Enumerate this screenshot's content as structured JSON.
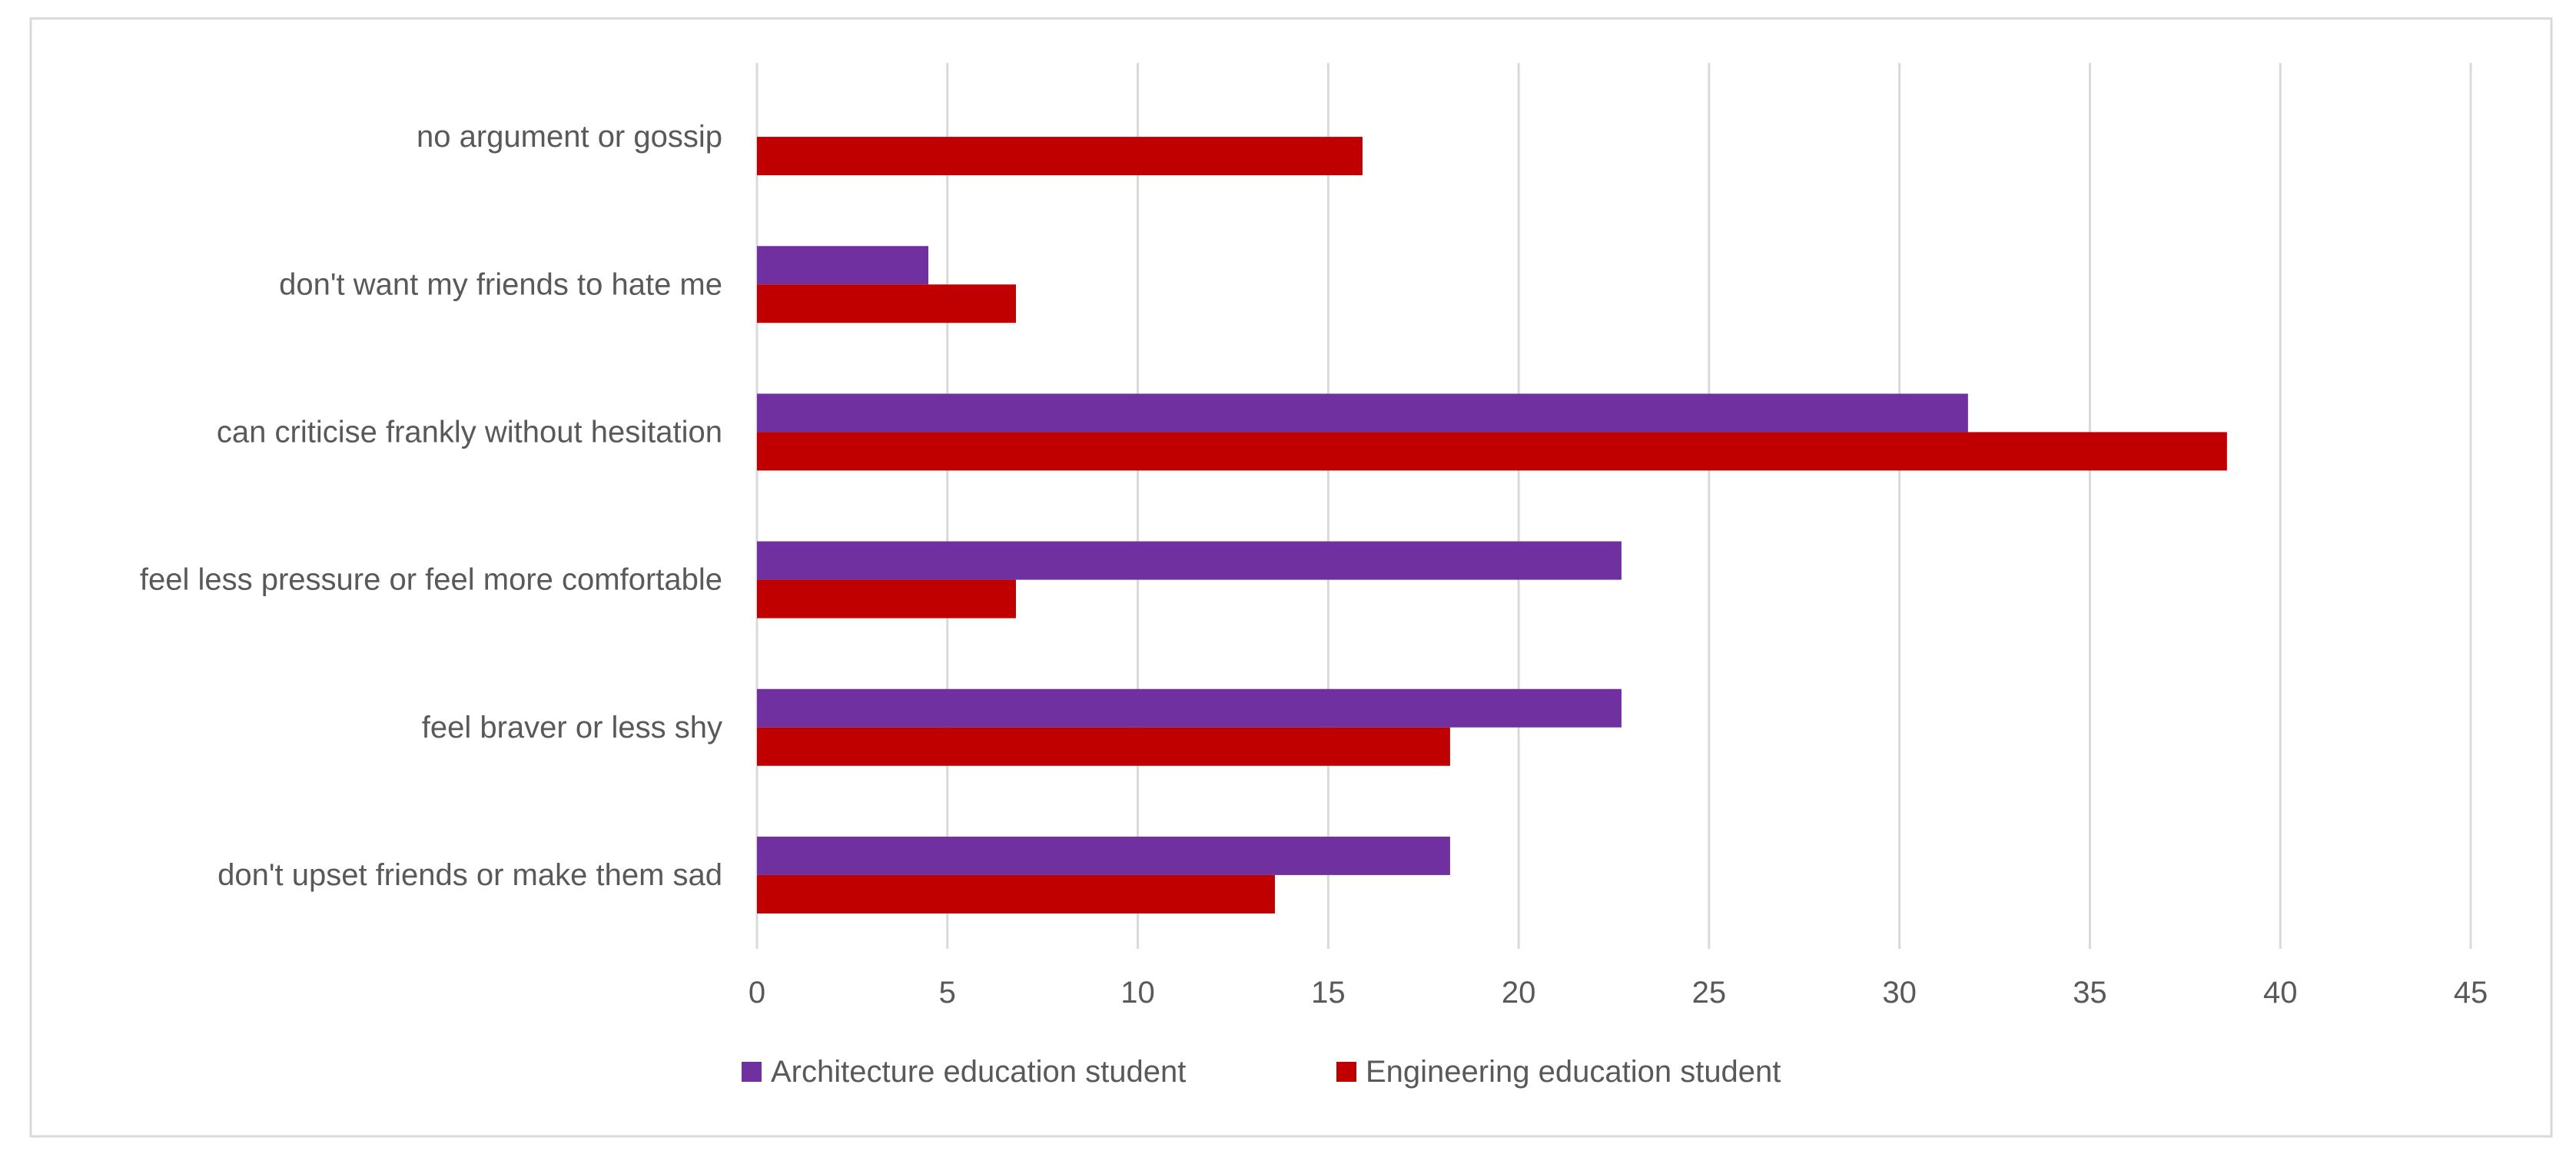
{
  "chart_data": {
    "type": "bar",
    "orientation": "horizontal",
    "title": "",
    "xlabel": "",
    "ylabel": "",
    "xlim": [
      0,
      45
    ],
    "x_ticks": [
      0,
      5,
      10,
      15,
      20,
      25,
      30,
      35,
      40,
      45
    ],
    "grid": true,
    "legend_position": "bottom-left",
    "categories": [
      "no argument or gossip",
      "don't want my friends to hate me",
      "can criticise frankly without hesitation",
      "feel less pressure or feel more comfortable",
      "feel braver or less shy",
      "don't upset friends or make them sad"
    ],
    "series": [
      {
        "name": "Architecture education student",
        "color": "#7030A0",
        "values": [
          0,
          4.5,
          31.8,
          22.7,
          22.7,
          18.2
        ]
      },
      {
        "name": "Engineering education student",
        "color": "#C00000",
        "values": [
          15.9,
          6.8,
          38.6,
          6.8,
          18.2,
          13.6
        ]
      }
    ]
  }
}
